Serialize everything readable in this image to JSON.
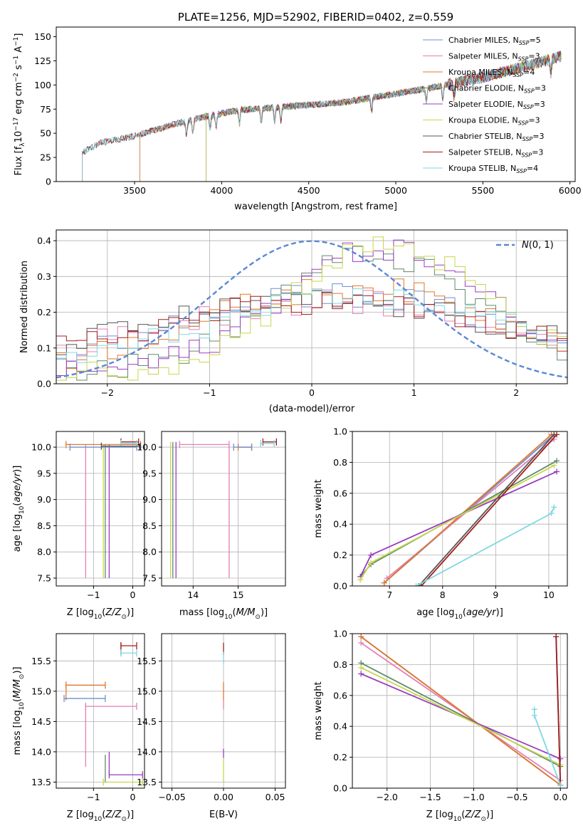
{
  "chart_data": [
    {
      "id": "spectrum",
      "type": "line",
      "title": "PLATE=1256, MJD=52902, FIBERID=0402, z=0.559",
      "xlabel": "wavelength [Angstrom, rest frame]",
      "ylabel_parts": [
        "Flux [f",
        "λ",
        "10",
        "−17",
        " erg cm",
        "−2",
        " s",
        "−1",
        " A",
        "−1",
        "]"
      ],
      "xlim": [
        3050,
        6030
      ],
      "ylim": [
        0,
        160
      ],
      "xticks": [
        3500,
        4000,
        4500,
        5000,
        5500,
        6000
      ],
      "yticks": [
        0,
        25,
        50,
        75,
        100,
        125,
        150
      ],
      "grid": false,
      "legend_position": "top-right",
      "series": [
        {
          "name": "Chabrier MILES, N",
          "n": "5",
          "color": "#6f8fd0",
          "start": 3530
        },
        {
          "name": "Salpeter MILES, N",
          "n": "3",
          "color": "#e57fb4",
          "start": 3530
        },
        {
          "name": "Kroupa MILES, N",
          "n": "4",
          "color": "#e0782b",
          "start": 3530
        },
        {
          "name": "Chabrier ELODIE, N",
          "n": "3",
          "color": "#5f8a6d",
          "start": 3910
        },
        {
          "name": "Salpeter ELODIE, N",
          "n": "3",
          "color": "#9a3cc0",
          "start": 3910
        },
        {
          "name": "Kroupa ELODIE, N",
          "n": "3",
          "color": "#c8d64a",
          "start": 3910
        },
        {
          "name": "Chabrier STELIB, N",
          "n": "3",
          "color": "#555555",
          "start": 3200
        },
        {
          "name": "Salpeter STELIB, N",
          "n": "3",
          "color": "#a31e1e",
          "start": 3200
        },
        {
          "name": "Kroupa STELIB, N",
          "n": "4",
          "color": "#7fd8e0",
          "start": 3200
        }
      ],
      "ssp_subscript": "SSP",
      "continuum": [
        [
          3200,
          30
        ],
        [
          3300,
          40
        ],
        [
          3500,
          47
        ],
        [
          3700,
          58
        ],
        [
          3900,
          67
        ],
        [
          4100,
          74
        ],
        [
          4400,
          78
        ],
        [
          4700,
          82
        ],
        [
          4900,
          88
        ],
        [
          5200,
          97
        ],
        [
          5500,
          108
        ],
        [
          5800,
          122
        ],
        [
          5950,
          130
        ]
      ]
    },
    {
      "id": "residuals",
      "type": "line",
      "xlabel": "(data-model)/error",
      "ylabel": "Normed distribution",
      "xlim": [
        -2.5,
        2.5
      ],
      "ylim": [
        0,
        0.43
      ],
      "xticks": [
        -2,
        -1,
        0,
        1,
        2
      ],
      "yticks": [
        0.0,
        0.1,
        0.2,
        0.3,
        0.4
      ],
      "grid": true,
      "legend_position": "top-right",
      "normal_curve": {
        "name": "N(0, 1)",
        "color": "#5b87d6",
        "mu": 0,
        "sigma": 1
      }
    },
    {
      "id": "age-Z",
      "type": "scatter",
      "xlabel": "Z [log10(Z/Z⊙)]",
      "ylabel": "age  [log10(age/yr)]",
      "xlim": [
        -1.95,
        0.3
      ],
      "ylim": [
        7.35,
        10.3
      ],
      "xticks": [
        -1,
        0
      ],
      "yticks": [
        7.5,
        8.0,
        8.5,
        9.0,
        9.5,
        10.0
      ],
      "grid": true,
      "segments": [
        {
          "color": "#e57fb4",
          "x": [
            -1.2,
            -1.2
          ],
          "y": [
            7.5,
            10.05
          ]
        },
        {
          "color": "#c8d64a",
          "x": [
            -0.75,
            -0.75
          ],
          "y": [
            7.5,
            10.05
          ]
        },
        {
          "color": "#5f8a6d",
          "x": [
            -0.7,
            -0.7
          ],
          "y": [
            7.5,
            10.05
          ]
        },
        {
          "color": "#9a3cc0",
          "x": [
            -0.6,
            -0.6
          ],
          "y": [
            7.5,
            10.05
          ]
        },
        {
          "color": "#e0782b",
          "x": [
            -1.7,
            0.2
          ],
          "y": [
            10.05,
            10.05
          ]
        },
        {
          "color": "#6f8fd0",
          "x": [
            -1.6,
            0.1
          ],
          "y": [
            10.0,
            10.0
          ]
        },
        {
          "color": "#a31e1e",
          "x": [
            -0.3,
            0.15
          ],
          "y": [
            10.1,
            10.1
          ]
        },
        {
          "color": "#7fd8e0",
          "x": [
            -0.3,
            0.1
          ],
          "y": [
            10.07,
            10.07
          ]
        },
        {
          "color": "#555555",
          "x": [
            -0.8,
            0.2
          ],
          "y": [
            10.02,
            10.02
          ]
        }
      ]
    },
    {
      "id": "age-mass",
      "type": "scatter",
      "xlabel": "mass [log10(M/M⊙)]",
      "xlim": [
        13.3,
        16.05
      ],
      "ylim": [
        7.35,
        10.3
      ],
      "xticks": [
        14,
        15
      ],
      "yticks": [
        7.5,
        8.0,
        8.5,
        9.0,
        9.5,
        10.0
      ],
      "grid": true,
      "segments": [
        {
          "color": "#c8d64a",
          "x": [
            13.5,
            13.5
          ],
          "y": [
            7.5,
            10.1
          ]
        },
        {
          "color": "#5f8a6d",
          "x": [
            13.55,
            13.55
          ],
          "y": [
            7.5,
            10.1
          ]
        },
        {
          "color": "#9a3cc0",
          "x": [
            13.62,
            13.62
          ],
          "y": [
            7.5,
            10.1
          ]
        },
        {
          "color": "#e57fb4",
          "x": [
            14.8,
            14.8
          ],
          "y": [
            7.5,
            10.05
          ]
        },
        {
          "color": "#e57fb4",
          "x": [
            13.7,
            14.8
          ],
          "y": [
            10.05,
            10.05
          ]
        },
        {
          "color": "#e0782b",
          "x": [
            15.0,
            15.3
          ],
          "y": [
            10.0,
            10.0
          ]
        },
        {
          "color": "#6f8fd0",
          "x": [
            14.9,
            15.3
          ],
          "y": [
            10.0,
            10.0
          ]
        },
        {
          "color": "#a31e1e",
          "x": [
            15.55,
            15.85
          ],
          "y": [
            10.1,
            10.1
          ]
        },
        {
          "color": "#7fd8e0",
          "x": [
            15.5,
            15.8
          ],
          "y": [
            10.07,
            10.07
          ]
        }
      ]
    },
    {
      "id": "massweight-age",
      "type": "line",
      "xlabel": "age  [log10(age/yr)]",
      "ylabel": "mass weight",
      "xlim": [
        6.3,
        10.35
      ],
      "ylim": [
        0,
        1.0
      ],
      "xticks": [
        7,
        8,
        9,
        10
      ],
      "yticks": [
        0.0,
        0.2,
        0.4,
        0.6,
        0.8,
        1.0
      ],
      "grid": true,
      "series": [
        {
          "color": "#6f8fd0",
          "x": [
            6.9,
            10.1
          ],
          "y": [
            0.02,
            0.98
          ]
        },
        {
          "color": "#e57fb4",
          "x": [
            6.95,
            10.1
          ],
          "y": [
            0.05,
            0.95
          ]
        },
        {
          "color": "#e0782b",
          "x": [
            6.9,
            10.05
          ],
          "y": [
            0.02,
            0.98
          ]
        },
        {
          "color": "#5f8a6d",
          "x": [
            6.45,
            6.65,
            10.15
          ],
          "y": [
            0.06,
            0.14,
            0.81
          ]
        },
        {
          "color": "#9a3cc0",
          "x": [
            6.45,
            6.65,
            10.15
          ],
          "y": [
            0.06,
            0.2,
            0.74
          ]
        },
        {
          "color": "#c8d64a",
          "x": [
            6.45,
            6.65,
            10.1
          ],
          "y": [
            0.04,
            0.15,
            0.78
          ]
        },
        {
          "color": "#555555",
          "x": [
            7.55,
            10.1
          ],
          "y": [
            0.0,
            0.98
          ]
        },
        {
          "color": "#a31e1e",
          "x": [
            7.6,
            10.15
          ],
          "y": [
            0.0,
            0.98
          ]
        },
        {
          "color": "#7fd8e0",
          "x": [
            7.5,
            10.05,
            10.1
          ],
          "y": [
            0.0,
            0.47,
            0.51
          ]
        }
      ]
    },
    {
      "id": "mass-Z",
      "type": "scatter",
      "xlabel": "Z [log10(Z/Z⊙)]",
      "ylabel": "mass [log10(M/M⊙)]",
      "xlim": [
        -1.95,
        0.3
      ],
      "ylim": [
        13.4,
        15.95
      ],
      "xticks": [
        -1,
        0
      ],
      "yticks": [
        13.5,
        14.0,
        14.5,
        15.0,
        15.5
      ],
      "grid": true,
      "segments": [
        {
          "color": "#e0782b",
          "x": [
            -1.7,
            -1.7
          ],
          "y": [
            14.85,
            15.1
          ]
        },
        {
          "color": "#e0782b",
          "x": [
            -1.7,
            -0.7
          ],
          "y": [
            15.1,
            15.1
          ]
        },
        {
          "color": "#6f8fd0",
          "x": [
            -1.75,
            -0.7
          ],
          "y": [
            14.88,
            14.88
          ]
        },
        {
          "color": "#e57fb4",
          "x": [
            -1.2,
            -1.2
          ],
          "y": [
            13.75,
            14.8
          ]
        },
        {
          "color": "#e57fb4",
          "x": [
            -1.2,
            0.1
          ],
          "y": [
            14.75,
            14.75
          ]
        },
        {
          "color": "#a31e1e",
          "x": [
            -0.3,
            0.1
          ],
          "y": [
            15.75,
            15.75
          ]
        },
        {
          "color": "#a31e1e",
          "x": [
            -0.3,
            -0.3
          ],
          "y": [
            15.6,
            15.8
          ]
        },
        {
          "color": "#7fd8e0",
          "x": [
            -0.3,
            0.1
          ],
          "y": [
            15.63,
            15.63
          ]
        },
        {
          "color": "#9a3cc0",
          "x": [
            -0.6,
            0.25
          ],
          "y": [
            13.62,
            13.62
          ]
        },
        {
          "color": "#9a3cc0",
          "x": [
            -0.6,
            -0.6
          ],
          "y": [
            13.62,
            14.0
          ]
        },
        {
          "color": "#c8d64a",
          "x": [
            -0.75,
            0.25
          ],
          "y": [
            13.5,
            13.5
          ]
        },
        {
          "color": "#5f8a6d",
          "x": [
            -0.7,
            -0.7
          ],
          "y": [
            13.5,
            13.95
          ]
        }
      ]
    },
    {
      "id": "mass-ebv",
      "type": "scatter",
      "xlabel": "E(B-V)",
      "xlim": [
        -0.06,
        0.06
      ],
      "ylim": [
        13.4,
        15.95
      ],
      "xticks": [
        -0.05,
        0.0,
        0.05
      ],
      "xtick_labels": [
        "−0.05",
        "0.00",
        "0.05"
      ],
      "yticks": [
        13.5,
        14.0,
        14.5,
        15.0,
        15.5
      ],
      "grid": true,
      "segments": [
        {
          "color": "#c8d64a",
          "x": [
            0,
            0
          ],
          "y": [
            13.5,
            13.9
          ]
        },
        {
          "color": "#9a3cc0",
          "x": [
            0,
            0
          ],
          "y": [
            13.9,
            14.05
          ]
        },
        {
          "color": "#e57fb4",
          "x": [
            0,
            0
          ],
          "y": [
            14.7,
            14.85
          ]
        },
        {
          "color": "#e0782b",
          "x": [
            0,
            0
          ],
          "y": [
            14.85,
            15.15
          ]
        },
        {
          "color": "#a31e1e",
          "x": [
            0,
            0
          ],
          "y": [
            15.6,
            15.8
          ]
        },
        {
          "color": "#7fd8e0",
          "x": [
            0,
            0
          ],
          "y": [
            15.45,
            15.65
          ]
        }
      ]
    },
    {
      "id": "massweight-Z",
      "type": "line",
      "xlabel": "Z [log10(Z/Z⊙)]",
      "ylabel": "mass weight",
      "xlim": [
        -2.4,
        0.08
      ],
      "ylim": [
        0,
        1.0
      ],
      "xticks": [
        -2.0,
        -1.5,
        -1.0,
        -0.5,
        0.0
      ],
      "yticks": [
        0.0,
        0.2,
        0.4,
        0.6,
        0.8,
        1.0
      ],
      "grid": true,
      "series": [
        {
          "color": "#6f8fd0",
          "x": [
            -2.3,
            0.0
          ],
          "y": [
            0.98,
            0.02
          ]
        },
        {
          "color": "#e57fb4",
          "x": [
            -2.3,
            0.0
          ],
          "y": [
            0.94,
            0.05
          ]
        },
        {
          "color": "#e0782b",
          "x": [
            -2.3,
            0.0
          ],
          "y": [
            0.98,
            0.02
          ]
        },
        {
          "color": "#5f8a6d",
          "x": [
            -2.3,
            0.0
          ],
          "y": [
            0.81,
            0.14
          ]
        },
        {
          "color": "#9a3cc0",
          "x": [
            -2.3,
            0.0
          ],
          "y": [
            0.74,
            0.19
          ]
        },
        {
          "color": "#c8d64a",
          "x": [
            -2.3,
            0.0
          ],
          "y": [
            0.78,
            0.15
          ]
        },
        {
          "color": "#555555",
          "x": [
            -0.05,
            0.0
          ],
          "y": [
            0.98,
            0.02
          ]
        },
        {
          "color": "#a31e1e",
          "x": [
            -0.05,
            0.0
          ],
          "y": [
            0.98,
            0.02
          ]
        },
        {
          "color": "#7fd8e0",
          "x": [
            -0.3,
            -0.3,
            0.0
          ],
          "y": [
            0.51,
            0.47,
            0.02
          ]
        }
      ]
    }
  ]
}
